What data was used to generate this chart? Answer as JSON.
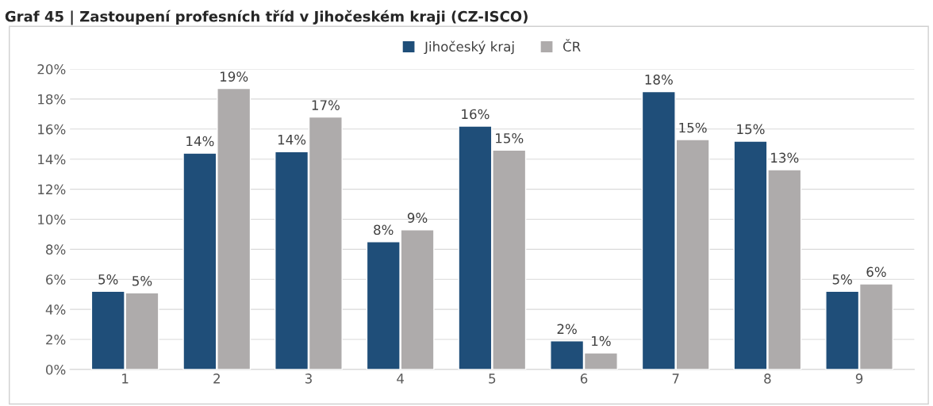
{
  "chart_data": {
    "type": "bar",
    "title": "Graf 45 | Zastoupení profesních tříd v Jihočeském kraji (CZ-ISCO)",
    "categories": [
      "1",
      "2",
      "3",
      "4",
      "5",
      "6",
      "7",
      "8",
      "9"
    ],
    "series": [
      {
        "name": "Jihočeský kraj",
        "color": "#1f4e79",
        "values": [
          5.2,
          14.4,
          14.5,
          8.5,
          16.2,
          1.9,
          18.5,
          15.2,
          5.2
        ],
        "value_labels": [
          "5%",
          "14%",
          "14%",
          "8%",
          "16%",
          "2%",
          "18%",
          "15%",
          "5%"
        ]
      },
      {
        "name": "ČR",
        "color": "#aeabab",
        "values": [
          5.1,
          18.7,
          16.8,
          9.3,
          14.6,
          1.1,
          15.3,
          13.3,
          5.7
        ],
        "value_labels": [
          "5%",
          "19%",
          "17%",
          "9%",
          "15%",
          "1%",
          "15%",
          "13%",
          "6%"
        ]
      }
    ],
    "ylim": [
      0,
      20
    ],
    "yticks": [
      {
        "value": 0,
        "label": "0%"
      },
      {
        "value": 2,
        "label": "2%"
      },
      {
        "value": 4,
        "label": "4%"
      },
      {
        "value": 6,
        "label": "6%"
      },
      {
        "value": 8,
        "label": "8%"
      },
      {
        "value": 10,
        "label": "10%"
      },
      {
        "value": 12,
        "label": "12%"
      },
      {
        "value": 14,
        "label": "14%"
      },
      {
        "value": 16,
        "label": "16%"
      },
      {
        "value": 18,
        "label": "18%"
      },
      {
        "value": 20,
        "label": "20%"
      }
    ],
    "grid": "y",
    "legend": "top"
  }
}
